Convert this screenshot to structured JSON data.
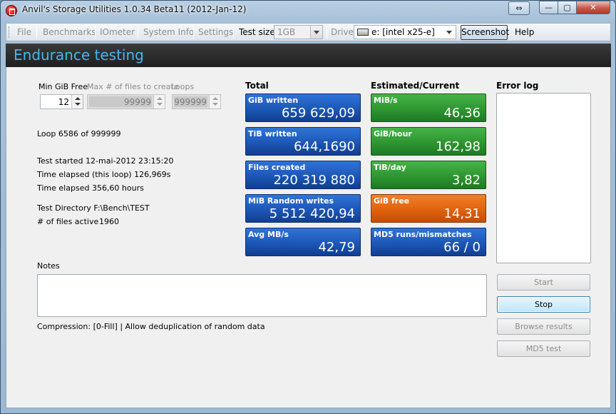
{
  "window": {
    "title": "Anvil's Storage Utilities 1.0.34 Beta11 (2012-Jan-12)",
    "extra_button_glyph": "⇔",
    "minimize_glyph": "—",
    "maximize_glyph": "▢",
    "close_glyph": "✕"
  },
  "toolbar": {
    "file": "File",
    "benchmarks": "Benchmarks",
    "iometer": "IOmeter",
    "system_info": "System Info",
    "settings": "Settings",
    "test_size_label": "Test size",
    "test_size_value": "1GB",
    "drive_label": "Drive",
    "drive_value": "e: [intel x25-e]",
    "screenshot": "Screenshot",
    "help": "Help"
  },
  "header": {
    "title": "Endurance testing"
  },
  "params": {
    "min_gib_free_label": "Min GiB Free",
    "min_gib_free_value": "12",
    "max_files_label": "Max # of files to create",
    "max_files_value": "99999",
    "loops_label": "Loops",
    "loops_value": "999999"
  },
  "status": {
    "loop": "Loop 6586 of 999999",
    "test_started": "Test started 12-mai-2012 23:15:20",
    "time_elapsed_loop": "Time elapsed (this loop) 126,969s",
    "time_elapsed": "Time elapsed 356,60 hours",
    "test_directory": "Test Directory F:\\Bench\\TEST",
    "files_active_label": "# of files active",
    "files_active_value": "1960"
  },
  "total": {
    "title": "Total",
    "tiles": [
      {
        "label": "GiB written",
        "value": "659 629,09"
      },
      {
        "label": "TiB written",
        "value": "644,1690"
      },
      {
        "label": "Files created",
        "value": "220 319 880"
      },
      {
        "label": "MiB Random writes",
        "value": "5 512 420,94"
      },
      {
        "label": "Avg MB/s",
        "value": "42,79"
      }
    ]
  },
  "estimated": {
    "title": "Estimated/Current",
    "tiles": [
      {
        "label": "MiB/s",
        "value": "46,36"
      },
      {
        "label": "GiB/hour",
        "value": "162,98"
      },
      {
        "label": "TiB/day",
        "value": "3,82"
      },
      {
        "label": "GiB free",
        "value": "14,31"
      },
      {
        "label": "MD5 runs/mismatches",
        "value": "66  /  0"
      }
    ]
  },
  "error_log": {
    "title": "Error log"
  },
  "notes": {
    "label": "Notes"
  },
  "compression": "Compression: [0-Fill]  |  Allow deduplication of random data",
  "buttons": {
    "start": "Start",
    "stop": "Stop",
    "browse_results": "Browse results",
    "md5_test": "MD5 test"
  },
  "colors": {
    "header_text": "#43b8f0",
    "tile_blue": "#1d57b6",
    "tile_green": "#2f9632",
    "tile_orange": "#e0620e"
  }
}
